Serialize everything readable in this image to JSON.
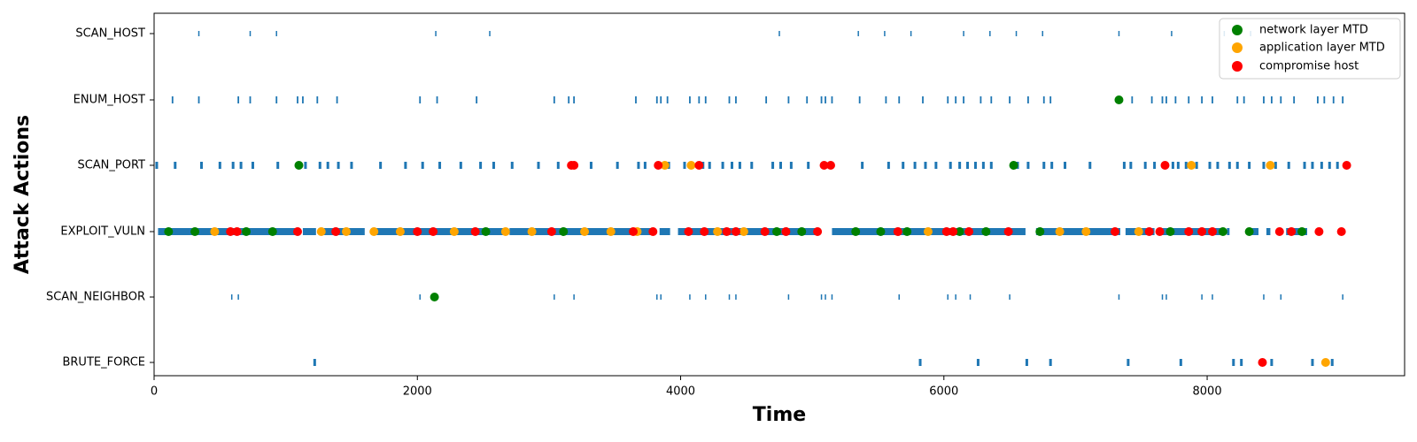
{
  "chart_data": {
    "type": "scatter",
    "xlabel": "Time",
    "ylabel": "Attack Actions",
    "xlim": [
      0,
      9500
    ],
    "x_ticks": [
      0,
      2000,
      4000,
      6000,
      8000
    ],
    "categories": [
      "SCAN_HOST",
      "ENUM_HOST",
      "SCAN_PORT",
      "EXPLOIT_VULN",
      "SCAN_NEIGHBOR",
      "BRUTE_FORCE"
    ],
    "grid": false,
    "legend_position": "top-right",
    "action_marks": {
      "color": "#1f77b4",
      "events": {
        "SCAN_HOST": [
          340,
          730,
          930,
          2140,
          2550,
          4750,
          5350,
          5550,
          5750,
          6150,
          6350,
          6550,
          6750,
          7330,
          7730,
          8130,
          8330
        ],
        "ENUM_HOST": [
          140,
          340,
          640,
          730,
          930,
          1090,
          1130,
          1240,
          1390,
          2020,
          2150,
          2450,
          3040,
          3150,
          3190,
          3660,
          3820,
          3850,
          3900,
          4070,
          4140,
          4190,
          4370,
          4420,
          4650,
          4820,
          4960,
          5070,
          5100,
          5150,
          5360,
          5560,
          5660,
          5840,
          6030,
          6090,
          6150,
          6280,
          6360,
          6500,
          6640,
          6760,
          6810,
          7430,
          7580,
          7660,
          7690,
          7760,
          7860,
          7960,
          8040,
          8230,
          8280,
          8430,
          8490,
          8560,
          8660,
          8840,
          8890,
          8960,
          9030
        ],
        "SCAN_PORT": [
          20,
          160,
          360,
          500,
          600,
          660,
          750,
          940,
          1150,
          1260,
          1320,
          1400,
          1500,
          1720,
          1910,
          2040,
          2170,
          2330,
          2480,
          2580,
          2720,
          2920,
          3070,
          3180,
          3320,
          3520,
          3680,
          3730,
          3870,
          3910,
          4030,
          4170,
          4220,
          4320,
          4390,
          4450,
          4540,
          4700,
          4760,
          4840,
          4970,
          5090,
          5150,
          5380,
          5580,
          5690,
          5780,
          5860,
          5940,
          6050,
          6120,
          6180,
          6240,
          6300,
          6360,
          6560,
          6640,
          6760,
          6820,
          6920,
          7110,
          7370,
          7420,
          7530,
          7600,
          7680,
          7740,
          7780,
          7840,
          7920,
          8020,
          8080,
          8170,
          8230,
          8320,
          8430,
          8520,
          8620,
          8740,
          8800,
          8870,
          8930,
          8990,
          9060
        ],
        "EXPLOIT_VULN": [
          [
            30,
            1070
          ],
          [
            1130,
            1230
          ],
          [
            1290,
            1600
          ],
          [
            1650,
            2660
          ],
          [
            2700,
            3800
          ],
          [
            3840,
            3920
          ],
          [
            3980,
            5060
          ],
          [
            5150,
            6620
          ],
          [
            6700,
            7340
          ],
          [
            7380,
            7600
          ],
          [
            7640,
            8100
          ],
          [
            8150,
            8170
          ],
          [
            8340,
            8390
          ],
          [
            8450,
            8480
          ],
          [
            8600,
            8760
          ]
        ],
        "SCAN_NEIGHBOR": [
          590,
          640,
          2020,
          3040,
          3190,
          3820,
          3850,
          4070,
          4190,
          4370,
          4420,
          4820,
          5070,
          5100,
          5150,
          5660,
          6030,
          6090,
          6200,
          6500,
          7330,
          7660,
          7690,
          7960,
          8040,
          8430,
          8560,
          9030
        ],
        "BRUTE_FORCE": [
          1220,
          5820,
          6260,
          6630,
          6810,
          7400,
          7800,
          8200,
          8260,
          8490,
          8800,
          8950
        ]
      }
    },
    "series": [
      {
        "name": "network layer MTD",
        "color": "#008000",
        "points": [
          [
            110,
            "EXPLOIT_VULN"
          ],
          [
            310,
            "EXPLOIT_VULN"
          ],
          [
            700,
            "EXPLOIT_VULN"
          ],
          [
            900,
            "EXPLOIT_VULN"
          ],
          [
            1100,
            "SCAN_PORT"
          ],
          [
            2130,
            "SCAN_NEIGHBOR"
          ],
          [
            2520,
            "EXPLOIT_VULN"
          ],
          [
            3110,
            "EXPLOIT_VULN"
          ],
          [
            4730,
            "EXPLOIT_VULN"
          ],
          [
            4920,
            "EXPLOIT_VULN"
          ],
          [
            5330,
            "EXPLOIT_VULN"
          ],
          [
            5520,
            "EXPLOIT_VULN"
          ],
          [
            5720,
            "EXPLOIT_VULN"
          ],
          [
            6120,
            "EXPLOIT_VULN"
          ],
          [
            6320,
            "EXPLOIT_VULN"
          ],
          [
            6530,
            "SCAN_PORT"
          ],
          [
            6730,
            "EXPLOIT_VULN"
          ],
          [
            7330,
            "ENUM_HOST"
          ],
          [
            7720,
            "EXPLOIT_VULN"
          ],
          [
            8120,
            "EXPLOIT_VULN"
          ],
          [
            8320,
            "EXPLOIT_VULN"
          ],
          [
            8720,
            "EXPLOIT_VULN"
          ]
        ]
      },
      {
        "name": "application layer MTD",
        "color": "#ffa500",
        "points": [
          [
            460,
            "EXPLOIT_VULN"
          ],
          [
            1270,
            "EXPLOIT_VULN"
          ],
          [
            1460,
            "EXPLOIT_VULN"
          ],
          [
            1670,
            "EXPLOIT_VULN"
          ],
          [
            1870,
            "EXPLOIT_VULN"
          ],
          [
            2280,
            "EXPLOIT_VULN"
          ],
          [
            2670,
            "EXPLOIT_VULN"
          ],
          [
            2870,
            "EXPLOIT_VULN"
          ],
          [
            3270,
            "EXPLOIT_VULN"
          ],
          [
            3470,
            "EXPLOIT_VULN"
          ],
          [
            3670,
            "EXPLOIT_VULN"
          ],
          [
            3880,
            "SCAN_PORT"
          ],
          [
            4080,
            "SCAN_PORT"
          ],
          [
            4280,
            "EXPLOIT_VULN"
          ],
          [
            4480,
            "EXPLOIT_VULN"
          ],
          [
            5880,
            "EXPLOIT_VULN"
          ],
          [
            6880,
            "EXPLOIT_VULN"
          ],
          [
            7080,
            "EXPLOIT_VULN"
          ],
          [
            7480,
            "EXPLOIT_VULN"
          ],
          [
            7880,
            "SCAN_PORT"
          ],
          [
            8480,
            "SCAN_PORT"
          ],
          [
            8900,
            "BRUTE_FORCE"
          ]
        ]
      },
      {
        "name": "compromise host",
        "color": "#ff0000",
        "points": [
          [
            580,
            "EXPLOIT_VULN"
          ],
          [
            630,
            "EXPLOIT_VULN"
          ],
          [
            1090,
            "EXPLOIT_VULN"
          ],
          [
            1380,
            "EXPLOIT_VULN"
          ],
          [
            2000,
            "EXPLOIT_VULN"
          ],
          [
            2120,
            "EXPLOIT_VULN"
          ],
          [
            2440,
            "EXPLOIT_VULN"
          ],
          [
            3020,
            "EXPLOIT_VULN"
          ],
          [
            3170,
            "SCAN_PORT"
          ],
          [
            3190,
            "SCAN_PORT"
          ],
          [
            3640,
            "EXPLOIT_VULN"
          ],
          [
            3790,
            "EXPLOIT_VULN"
          ],
          [
            3830,
            "SCAN_PORT"
          ],
          [
            4060,
            "EXPLOIT_VULN"
          ],
          [
            4140,
            "SCAN_PORT"
          ],
          [
            4180,
            "EXPLOIT_VULN"
          ],
          [
            4350,
            "EXPLOIT_VULN"
          ],
          [
            4420,
            "EXPLOIT_VULN"
          ],
          [
            4640,
            "EXPLOIT_VULN"
          ],
          [
            4800,
            "EXPLOIT_VULN"
          ],
          [
            5040,
            "EXPLOIT_VULN"
          ],
          [
            5090,
            "SCAN_PORT"
          ],
          [
            5140,
            "SCAN_PORT"
          ],
          [
            5650,
            "EXPLOIT_VULN"
          ],
          [
            6020,
            "EXPLOIT_VULN"
          ],
          [
            6070,
            "EXPLOIT_VULN"
          ],
          [
            6190,
            "EXPLOIT_VULN"
          ],
          [
            6490,
            "EXPLOIT_VULN"
          ],
          [
            7300,
            "EXPLOIT_VULN"
          ],
          [
            7560,
            "EXPLOIT_VULN"
          ],
          [
            7640,
            "EXPLOIT_VULN"
          ],
          [
            7680,
            "SCAN_PORT"
          ],
          [
            7860,
            "EXPLOIT_VULN"
          ],
          [
            7960,
            "EXPLOIT_VULN"
          ],
          [
            8040,
            "EXPLOIT_VULN"
          ],
          [
            8420,
            "BRUTE_FORCE"
          ],
          [
            8550,
            "EXPLOIT_VULN"
          ],
          [
            8640,
            "EXPLOIT_VULN"
          ],
          [
            8850,
            "EXPLOIT_VULN"
          ],
          [
            9020,
            "EXPLOIT_VULN"
          ],
          [
            9060,
            "SCAN_PORT"
          ]
        ]
      }
    ]
  }
}
